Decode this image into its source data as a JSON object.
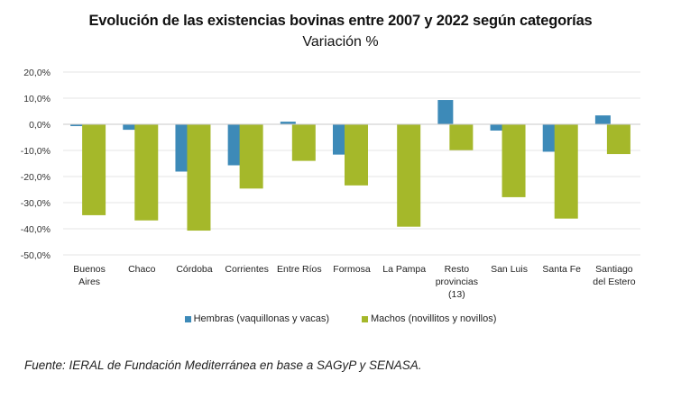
{
  "chart_data": {
    "type": "bar",
    "title": "Evolución de las existencias bovinas entre 2007 y 2022 según categorías",
    "subtitle": "Variación %",
    "xlabel": "",
    "ylabel": "",
    "ylim": [
      -50,
      20
    ],
    "yticks": [
      20,
      10,
      0,
      -10,
      -20,
      -30,
      -40,
      -50
    ],
    "ytick_labels": [
      "20,0%",
      "10,0%",
      "0,0%",
      "-10,0%",
      "-20,0%",
      "-30,0%",
      "-40,0%",
      "-50,0%"
    ],
    "grid": true,
    "legend_position": "bottom",
    "categories": [
      [
        "Buenos",
        "Aires"
      ],
      [
        "Chaco"
      ],
      [
        "Córdoba"
      ],
      [
        "Corrientes"
      ],
      [
        "Entre Ríos"
      ],
      [
        "Formosa"
      ],
      [
        "La Pampa"
      ],
      [
        "Resto",
        "provincias",
        "(13)"
      ],
      [
        "San Luis"
      ],
      [
        "Santa Fe"
      ],
      [
        "Santiago",
        "del Estero"
      ]
    ],
    "series": [
      {
        "name": "Hembras (vaquillonas y vacas)",
        "color": "#3d8ab8",
        "values": [
          -0.7,
          -2.1,
          -18.1,
          -15.7,
          1.0,
          -11.6,
          0.0,
          9.3,
          -2.4,
          -10.5,
          3.4
        ]
      },
      {
        "name": "Machos (novillitos y novillos)",
        "color": "#a5b82a",
        "values": [
          -34.8,
          -36.8,
          -40.7,
          -24.6,
          -14.0,
          -23.4,
          -39.2,
          -9.9,
          -27.9,
          -36.1,
          -11.4
        ]
      }
    ]
  },
  "source": "Fuente: IERAL de Fundación Mediterránea en base a SAGyP y SENASA."
}
